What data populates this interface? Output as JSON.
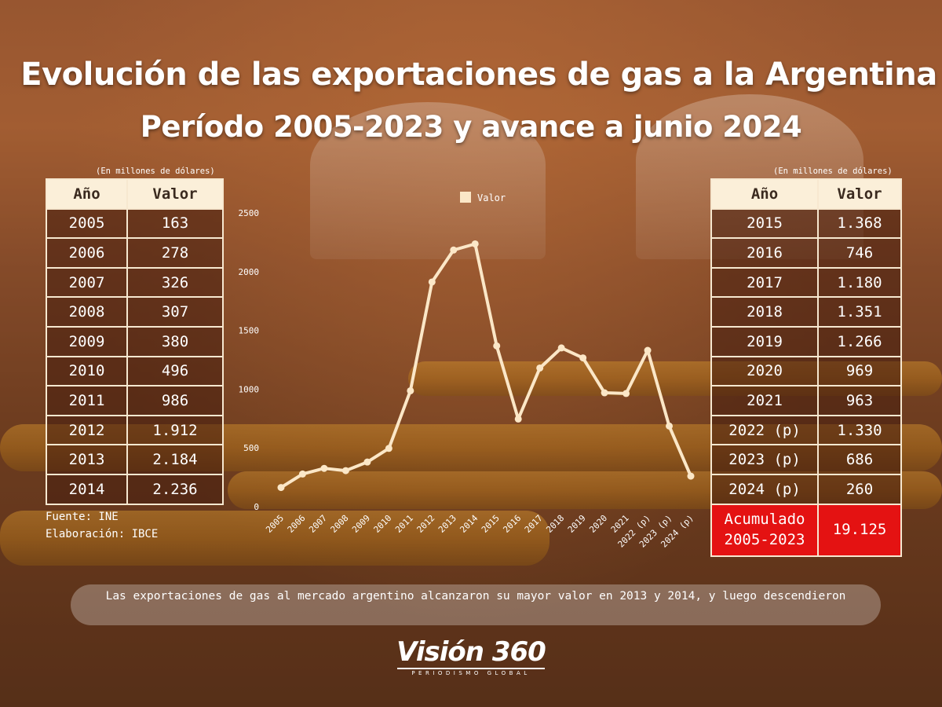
{
  "header": {
    "title_line1": "Evolución de las exportaciones de gas a la Argentina",
    "title_line2": "Período 2005-2023 y avance a junio 2024"
  },
  "units_note": "(En millones de dólares)",
  "left_table": {
    "headers": [
      "Año",
      "Valor"
    ],
    "rows": [
      [
        "2005",
        "163"
      ],
      [
        "2006",
        "278"
      ],
      [
        "2007",
        "326"
      ],
      [
        "2008",
        "307"
      ],
      [
        "2009",
        "380"
      ],
      [
        "2010",
        "496"
      ],
      [
        "2011",
        "986"
      ],
      [
        "2012",
        "1.912"
      ],
      [
        "2013",
        "2.184"
      ],
      [
        "2014",
        "2.236"
      ]
    ]
  },
  "right_table": {
    "headers": [
      "Año",
      "Valor"
    ],
    "rows": [
      [
        "2015",
        "1.368"
      ],
      [
        "2016",
        "746"
      ],
      [
        "2017",
        "1.180"
      ],
      [
        "2018",
        "1.351"
      ],
      [
        "2019",
        "1.266"
      ],
      [
        "2020",
        "969"
      ],
      [
        "2021",
        "963"
      ],
      [
        "2022 (p)",
        "1.330"
      ],
      [
        "2023 (p)",
        "686"
      ],
      [
        "2024 (p)",
        "260"
      ]
    ],
    "accumulated_label_line1": "Acumulado",
    "accumulated_label_line2": "2005-2023",
    "accumulated_value": "19.125"
  },
  "source": {
    "fuente": "Fuente: INE",
    "elaboracion": "Elaboración: IBCE"
  },
  "caption": "Las exportaciones de gas al mercado argentino alcanzaron su mayor valor en 2013 y 2014, y luego descendieron",
  "logo": {
    "name": "Visión 360",
    "tagline": "PERIODISMO GLOBAL"
  },
  "chart_data": {
    "type": "line",
    "categories": [
      "2005",
      "2006",
      "2007",
      "2008",
      "2009",
      "2010",
      "2011",
      "2012",
      "2013",
      "2014",
      "2015",
      "2016",
      "2017",
      "2018",
      "2019",
      "2020",
      "2021",
      "2022 (p)",
      "2023 (p)",
      "2024 (p)"
    ],
    "series": [
      {
        "name": "Valor",
        "values": [
          163,
          278,
          326,
          307,
          380,
          496,
          986,
          1912,
          2184,
          2236,
          1368,
          746,
          1180,
          1351,
          1266,
          969,
          963,
          1330,
          686,
          260
        ]
      }
    ],
    "yticks": [
      0,
      500,
      1000,
      1500,
      2000,
      2500
    ],
    "ylim": [
      0,
      2500
    ],
    "legend_position": "top",
    "grid": false,
    "line_color": "#fbe7c7"
  }
}
